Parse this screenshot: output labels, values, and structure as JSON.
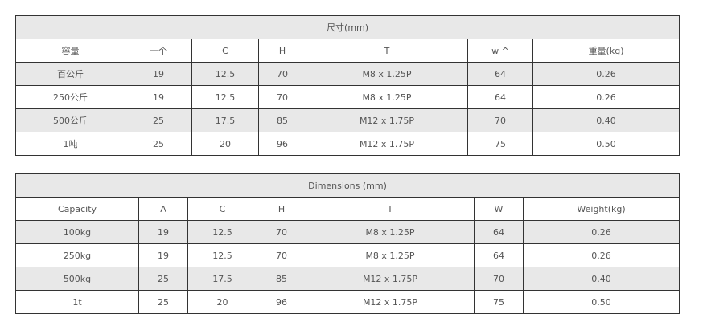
{
  "table_cn": {
    "title": "尺寸(mm)",
    "headers": [
      "容量",
      "一个",
      "C",
      "H",
      "T",
      "w ^",
      "重量(kg)"
    ],
    "rows": [
      [
        "百公斤",
        "19",
        "12.5",
        "70",
        "M8 x 1.25P",
        "64",
        "0.26"
      ],
      [
        "250公斤",
        "19",
        "12.5",
        "70",
        "M8 x 1.25P",
        "64",
        "0.26"
      ],
      [
        "500公斤",
        "25",
        "17.5",
        "85",
        "M12 x 1.75P",
        "70",
        "0.40"
      ],
      [
        "1吨",
        "25",
        "20",
        "96",
        "M12 x 1.75P",
        "75",
        "0.50"
      ]
    ]
  },
  "table_en": {
    "title": "Dimensions (mm)",
    "headers": [
      "Capacity",
      "A",
      "C",
      "H",
      "T",
      "W",
      "Weight(kg)"
    ],
    "rows": [
      [
        "100kg",
        "19",
        "12.5",
        "70",
        "M8 x 1.25P",
        "64",
        "0.26"
      ],
      [
        "250kg",
        "19",
        "12.5",
        "70",
        "M8 x 1.25P",
        "64",
        "0.26"
      ],
      [
        "500kg",
        "25",
        "17.5",
        "85",
        "M12 x 1.75P",
        "70",
        "0.40"
      ],
      [
        "1t",
        "25",
        "20",
        "96",
        "M12 x 1.75P",
        "75",
        "0.50"
      ]
    ]
  },
  "colors": {
    "shaded_row": "#e8e8e8",
    "border": "#333333",
    "text": "#555555"
  }
}
